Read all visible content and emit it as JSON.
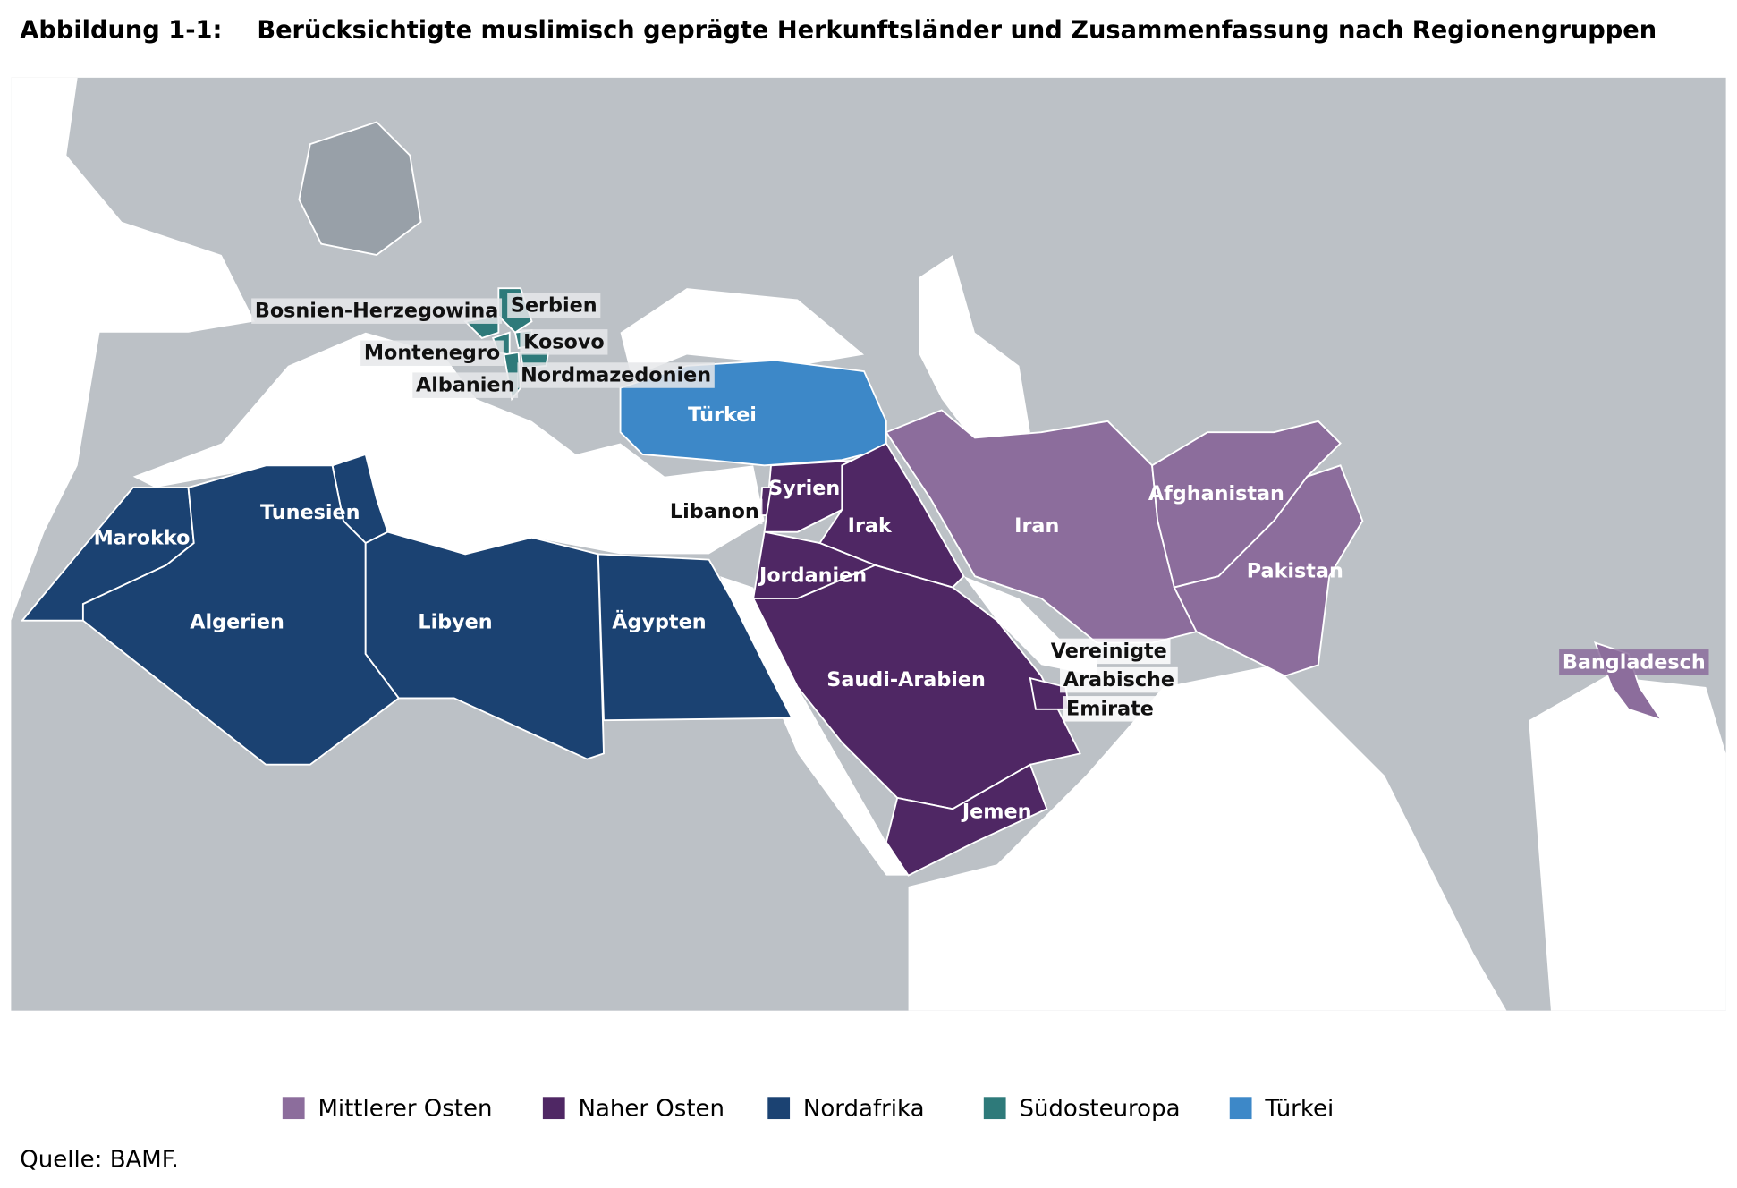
{
  "figure": {
    "number": "Abbildung 1-1:",
    "title": "Berücksichtigte muslimisch geprägte Herkunftsländer und Zusammenfassung nach Regionengruppen"
  },
  "legend": [
    {
      "label": "Mittlerer Osten",
      "color": "#8c6d9c"
    },
    {
      "label": "Naher Osten",
      "color": "#4f2764"
    },
    {
      "label": "Nordafrika",
      "color": "#1b4272"
    },
    {
      "label": "Südosteuropa",
      "color": "#2e7a7a"
    },
    {
      "label": "Türkei",
      "color": "#3d88c8"
    }
  ],
  "countries": [
    {
      "label": "Bosnien-Herzegowina",
      "group": 3
    },
    {
      "label": "Serbien",
      "group": 3
    },
    {
      "label": "Kosovo",
      "group": 3
    },
    {
      "label": "Montenegro",
      "group": 3
    },
    {
      "label": "Albanien",
      "group": 3
    },
    {
      "label": "Nordmazedonien",
      "group": 3
    },
    {
      "label": "Türkei",
      "group": 4
    },
    {
      "label": "Syrien",
      "group": 1
    },
    {
      "label": "Libanon",
      "group": 1
    },
    {
      "label": "Irak",
      "group": 1
    },
    {
      "label": "Jordanien",
      "group": 1
    },
    {
      "label": "Saudi-Arabien",
      "group": 1
    },
    {
      "label": [
        "Vereinigte",
        "Arabische",
        "Emirate"
      ],
      "group": 1
    },
    {
      "label": "Jemen",
      "group": 1
    },
    {
      "label": "Iran",
      "group": 0
    },
    {
      "label": "Afghanistan",
      "group": 0
    },
    {
      "label": "Pakistan",
      "group": 0
    },
    {
      "label": "Bangladesch",
      "group": 0
    },
    {
      "label": "Marokko",
      "group": 2
    },
    {
      "label": "Tunesien",
      "group": 2
    },
    {
      "label": "Algerien",
      "group": 2
    },
    {
      "label": "Libyen",
      "group": 2
    },
    {
      "label": "Ägypten",
      "group": 2
    }
  ],
  "source": "Quelle: BAMF."
}
